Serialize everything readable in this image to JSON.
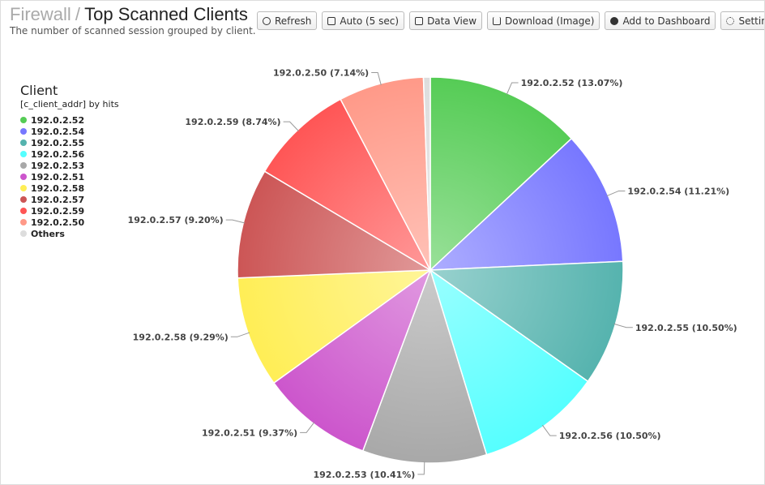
{
  "header": {
    "parent": "Firewall",
    "separator": "/",
    "title": "Top Scanned Clients",
    "description": "The number of scanned session grouped by client."
  },
  "toolbar": [
    "Refresh",
    "Auto (5 sec)",
    "Data View",
    "Download (Image)",
    "Add to Dashboard",
    "Settings"
  ],
  "chart_data": {
    "type": "pie",
    "legend_title": "Client",
    "legend_subtitle": "[c_client_addr] by hits",
    "legend_position": "top-left",
    "categories": [
      "192.0.2.52",
      "192.0.2.54",
      "192.0.2.55",
      "192.0.2.56",
      "192.0.2.53",
      "192.0.2.51",
      "192.0.2.58",
      "192.0.2.57",
      "192.0.2.59",
      "192.0.2.50",
      "Others"
    ],
    "values": [
      13.07,
      11.21,
      10.5,
      10.5,
      10.41,
      9.37,
      9.29,
      9.2,
      8.74,
      7.14,
      0.57
    ],
    "value_labels": [
      "192.0.2.52 (13.07%)",
      "192.0.2.54 (11.21%)",
      "192.0.2.55 (10.50%)",
      "192.0.2.56 (10.50%)",
      "192.0.2.53 (10.41%)",
      "192.0.2.51 (9.37%)",
      "192.0.2.58 (9.29%)",
      "192.0.2.57 (9.20%)",
      "192.0.2.59 (8.74%)",
      "192.0.2.50 (7.14%)",
      null
    ],
    "colors": [
      "#55cc55",
      "#7777ff",
      "#55b3ae",
      "#55ffff",
      "#a8a8a8",
      "#cc55cc",
      "#ffee55",
      "#cc5555",
      "#ff5555",
      "#ff9988",
      "#dddddd"
    ]
  }
}
